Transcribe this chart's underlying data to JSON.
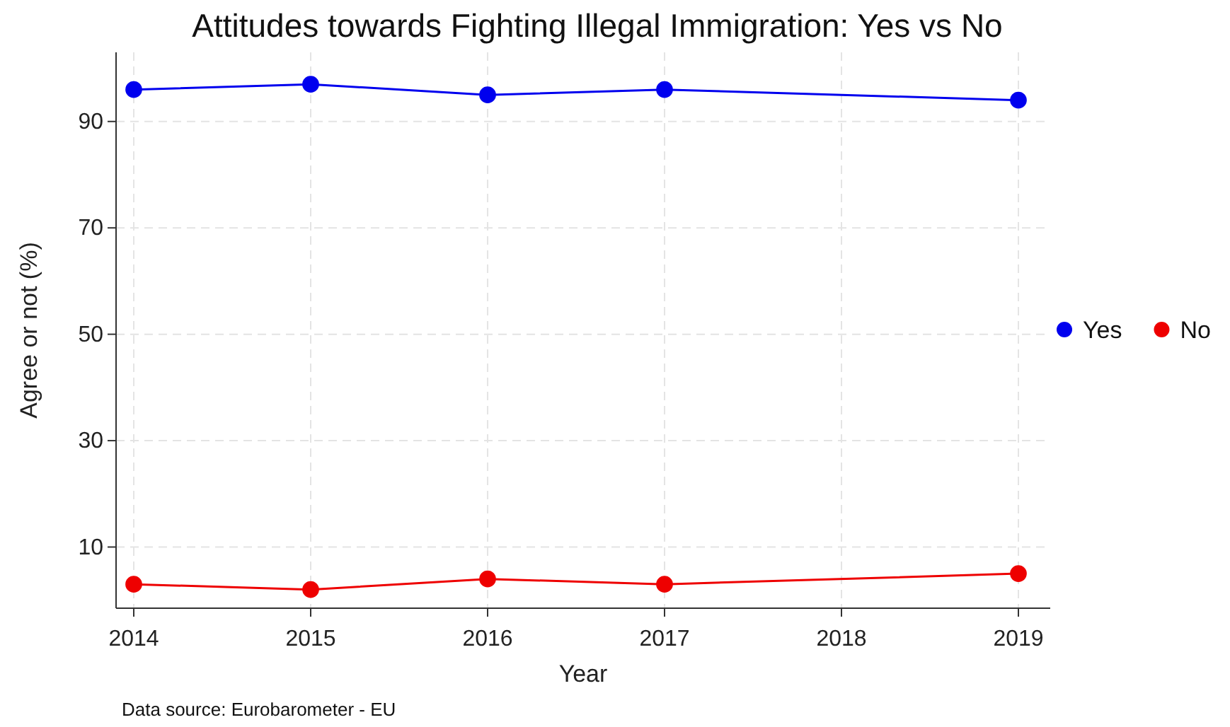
{
  "chart_data": {
    "type": "line",
    "title": "Attitudes towards Fighting Illegal Immigration: Yes vs No",
    "xlabel": "Year",
    "ylabel": "Agree or not (%)",
    "annotations": [
      "Data source: Eurobarometer - EU"
    ],
    "x": [
      2014,
      2015,
      2016,
      2017,
      2019
    ],
    "series": [
      {
        "name": "Yes",
        "color": "#0000ee",
        "values": [
          96,
          97,
          95,
          96,
          94
        ]
      },
      {
        "name": "No",
        "color": "#ee0000",
        "values": [
          3,
          2,
          4,
          3,
          5
        ]
      }
    ],
    "xlim": [
      2013.9,
      2019.18
    ],
    "xticks": [
      2014,
      2015,
      2016,
      2017,
      2018,
      2019
    ],
    "ylim": [
      -1.5,
      103
    ],
    "yticks": [
      10,
      30,
      50,
      70,
      90
    ],
    "grid": true,
    "legend": "right",
    "marker": "circle",
    "line_style": "solid"
  }
}
